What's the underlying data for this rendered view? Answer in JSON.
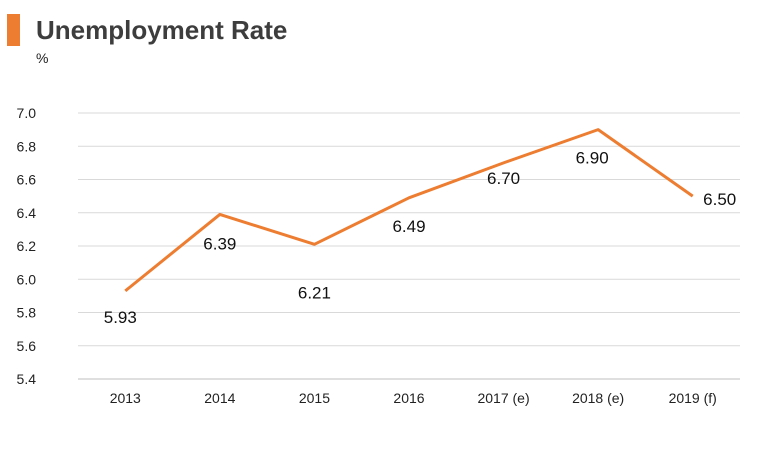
{
  "header": {
    "title": "Unemployment Rate",
    "unit": "%",
    "accent_color": "#ed7d31"
  },
  "chart_data": {
    "type": "line",
    "title": "Unemployment Rate",
    "xlabel": "",
    "ylabel": "%",
    "categories": [
      "2013",
      "2014",
      "2015",
      "2016",
      "2017 (e)",
      "2018 (e)",
      "2019 (f)"
    ],
    "series": [
      {
        "values": [
          5.93,
          6.39,
          6.21,
          6.49,
          6.7,
          6.9,
          6.5
        ],
        "data_labels": [
          "5.93",
          "6.39",
          "6.21",
          "6.49",
          "6.70",
          "6.90",
          "6.50"
        ],
        "color": "#ed7d31"
      }
    ],
    "ylim": [
      5.4,
      7.0
    ],
    "yticks": [
      "5.4",
      "5.6",
      "5.8",
      "6.0",
      "6.2",
      "6.4",
      "6.6",
      "6.8",
      "7.0"
    ],
    "grid": true,
    "legend": "none",
    "grid_color": "#d9d9d9",
    "axis_color": "#bfbfbf"
  }
}
